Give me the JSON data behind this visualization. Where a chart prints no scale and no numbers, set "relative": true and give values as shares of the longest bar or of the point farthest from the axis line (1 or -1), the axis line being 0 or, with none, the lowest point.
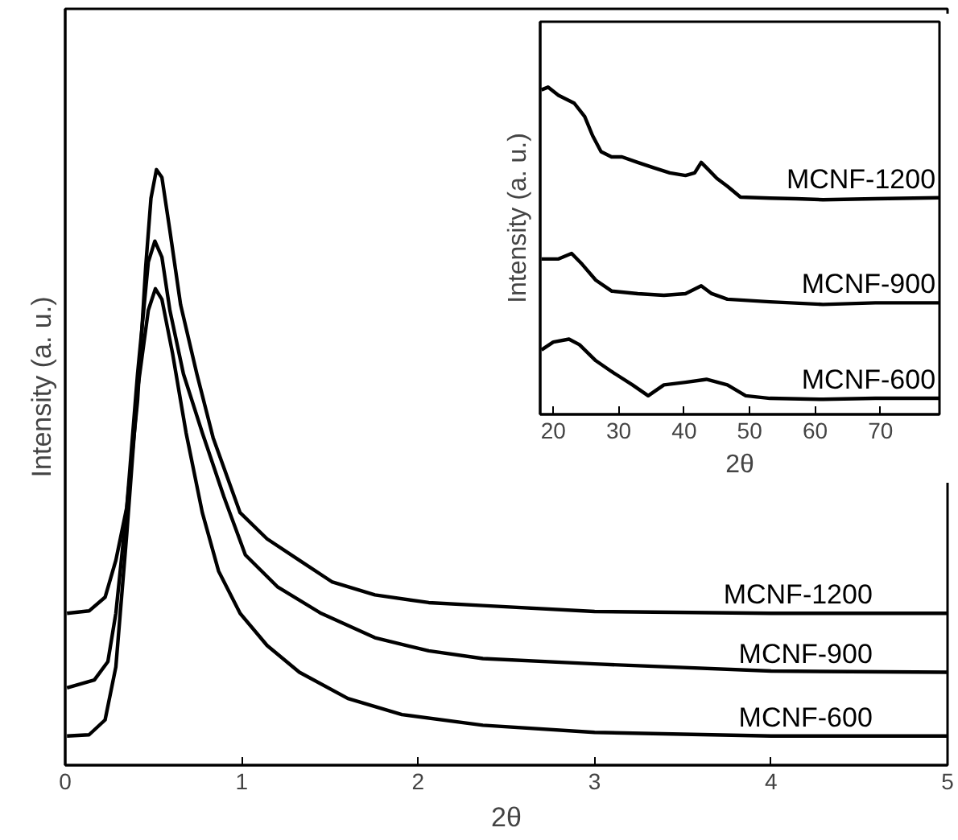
{
  "chart_data": [
    {
      "type": "line",
      "xlabel": "2θ",
      "ylabel": "Intensity (a. u.)",
      "xlim": [
        0,
        5
      ],
      "xticks": [
        0,
        1,
        2,
        3,
        4,
        5
      ],
      "relative": true,
      "grid": false,
      "series": [
        {
          "name": "MCNF-1200",
          "color": "#000000",
          "x": [
            0.01,
            0.135,
            0.226,
            0.287,
            0.349,
            0.41,
            0.456,
            0.486,
            0.517,
            0.548,
            0.593,
            0.654,
            0.746,
            0.838,
            0.991,
            1.144,
            1.327,
            1.511,
            1.755,
            2.06,
            2.367,
            3.0,
            4.0,
            5.0
          ],
          "values": [
            0.255,
            0.259,
            0.282,
            0.344,
            0.433,
            0.612,
            0.836,
            0.952,
            1.0,
            0.987,
            0.898,
            0.773,
            0.657,
            0.55,
            0.424,
            0.38,
            0.344,
            0.308,
            0.286,
            0.273,
            0.268,
            0.258,
            0.255,
            0.255
          ]
        },
        {
          "name": "MCNF-900",
          "color": "#000000",
          "x": [
            0.01,
            0.165,
            0.242,
            0.287,
            0.349,
            0.41,
            0.471,
            0.508,
            0.548,
            0.593,
            0.67,
            0.777,
            0.899,
            1.021,
            1.205,
            1.45,
            1.755,
            2.06,
            2.367,
            3.0,
            4.0,
            5.0
          ],
          "values": [
            0.13,
            0.143,
            0.174,
            0.255,
            0.433,
            0.657,
            0.845,
            0.88,
            0.853,
            0.764,
            0.657,
            0.558,
            0.451,
            0.353,
            0.299,
            0.255,
            0.214,
            0.192,
            0.179,
            0.17,
            0.158,
            0.156
          ]
        },
        {
          "name": "MCNF-600",
          "color": "#000000",
          "x": [
            0.01,
            0.135,
            0.226,
            0.287,
            0.349,
            0.41,
            0.471,
            0.511,
            0.548,
            0.608,
            0.685,
            0.777,
            0.869,
            0.991,
            1.144,
            1.327,
            1.602,
            1.908,
            2.367,
            3.0,
            4.0,
            5.0
          ],
          "values": [
            0.049,
            0.051,
            0.076,
            0.165,
            0.389,
            0.63,
            0.764,
            0.8,
            0.782,
            0.692,
            0.558,
            0.424,
            0.326,
            0.255,
            0.201,
            0.156,
            0.112,
            0.085,
            0.067,
            0.055,
            0.049,
            0.049
          ]
        }
      ]
    },
    {
      "type": "line",
      "xlabel": "2θ",
      "ylabel": "Intensity (a. u.)",
      "xlim": [
        18,
        79
      ],
      "xticks": [
        20,
        30,
        40,
        50,
        60,
        70
      ],
      "relative": true,
      "grid": false,
      "series": [
        {
          "name": "MCNF-1200",
          "color": "#000000",
          "x": [
            18.2,
            19.2,
            20.8,
            23.2,
            24.8,
            26.0,
            27.3,
            28.9,
            30.5,
            32.9,
            35.3,
            37.8,
            40.2,
            41.6,
            42.6,
            43.4,
            45.0,
            46.6,
            48.6,
            53.1,
            57.1,
            61.2,
            69.2,
            79.0
          ],
          "values": [
            0.992,
            1.0,
            0.975,
            0.951,
            0.91,
            0.852,
            0.803,
            0.787,
            0.787,
            0.77,
            0.754,
            0.738,
            0.73,
            0.738,
            0.77,
            0.754,
            0.721,
            0.697,
            0.664,
            0.661,
            0.659,
            0.656,
            0.659,
            0.662
          ]
        },
        {
          "name": "MCNF-900",
          "color": "#000000",
          "x": [
            18.2,
            20.8,
            22.8,
            24.4,
            26.5,
            28.9,
            32.9,
            36.9,
            40.2,
            42.6,
            44.2,
            46.6,
            53.1,
            61.2,
            69.2,
            79.0
          ],
          "values": [
            0.475,
            0.475,
            0.492,
            0.459,
            0.41,
            0.377,
            0.369,
            0.364,
            0.369,
            0.393,
            0.369,
            0.352,
            0.344,
            0.336,
            0.341,
            0.341
          ]
        },
        {
          "name": "MCNF-600",
          "color": "#000000",
          "x": [
            18.2,
            20.0,
            22.4,
            24.0,
            26.5,
            28.9,
            32.1,
            34.5,
            36.9,
            40.2,
            43.4,
            46.6,
            49.4,
            53.1,
            61.2,
            69.2,
            79.0
          ],
          "values": [
            0.197,
            0.221,
            0.23,
            0.213,
            0.164,
            0.131,
            0.09,
            0.057,
            0.09,
            0.098,
            0.107,
            0.09,
            0.057,
            0.049,
            0.046,
            0.049,
            0.049
          ]
        }
      ]
    }
  ]
}
